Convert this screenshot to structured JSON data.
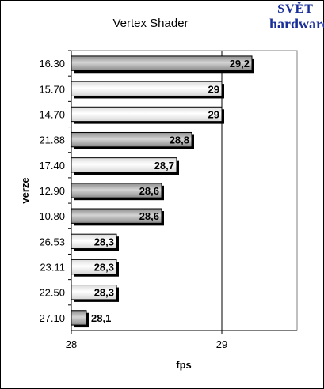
{
  "logo": {
    "line1": "SVĚT",
    "line2": "hardware"
  },
  "colors": {
    "plot_bg": "#ffffff",
    "frame": "#000000",
    "bar_dark": "#999999",
    "bar_light": "#ffffff",
    "bar_dark_highlight": "#cfcfcf",
    "bar_light_shadow": "#d0d0d0",
    "shadow": "#000000"
  },
  "chart_data": {
    "type": "bar",
    "orientation": "horizontal",
    "title": "Vertex Shader",
    "xlabel": "fps",
    "ylabel": "verze",
    "xlim": [
      28,
      29.5
    ],
    "x_ticks": [
      {
        "value": 28,
        "label": "28"
      },
      {
        "value": 29,
        "label": "29"
      }
    ],
    "grid": {
      "vertical": [
        29
      ]
    },
    "legend": "none",
    "series": [
      {
        "bars": [
          {
            "category": "16.30",
            "value": 29.2,
            "label": "29,2",
            "style": "dark"
          },
          {
            "category": "15.70",
            "value": 29,
            "label": "29",
            "style": "light"
          },
          {
            "category": "14.70",
            "value": 29,
            "label": "29",
            "style": "light"
          },
          {
            "category": "21.88",
            "value": 28.8,
            "label": "28,8",
            "style": "dark"
          },
          {
            "category": "17.40",
            "value": 28.7,
            "label": "28,7",
            "style": "light"
          },
          {
            "category": "12.90",
            "value": 28.6,
            "label": "28,6",
            "style": "dark"
          },
          {
            "category": "10.80",
            "value": 28.6,
            "label": "28,6",
            "style": "dark"
          },
          {
            "category": "26.53",
            "value": 28.3,
            "label": "28,3",
            "style": "light"
          },
          {
            "category": "23.11",
            "value": 28.3,
            "label": "28,3",
            "style": "light"
          },
          {
            "category": "22.50",
            "value": 28.3,
            "label": "28,3",
            "style": "light"
          },
          {
            "category": "27.10",
            "value": 28.1,
            "label": "28,1",
            "style": "dark"
          }
        ]
      }
    ]
  }
}
